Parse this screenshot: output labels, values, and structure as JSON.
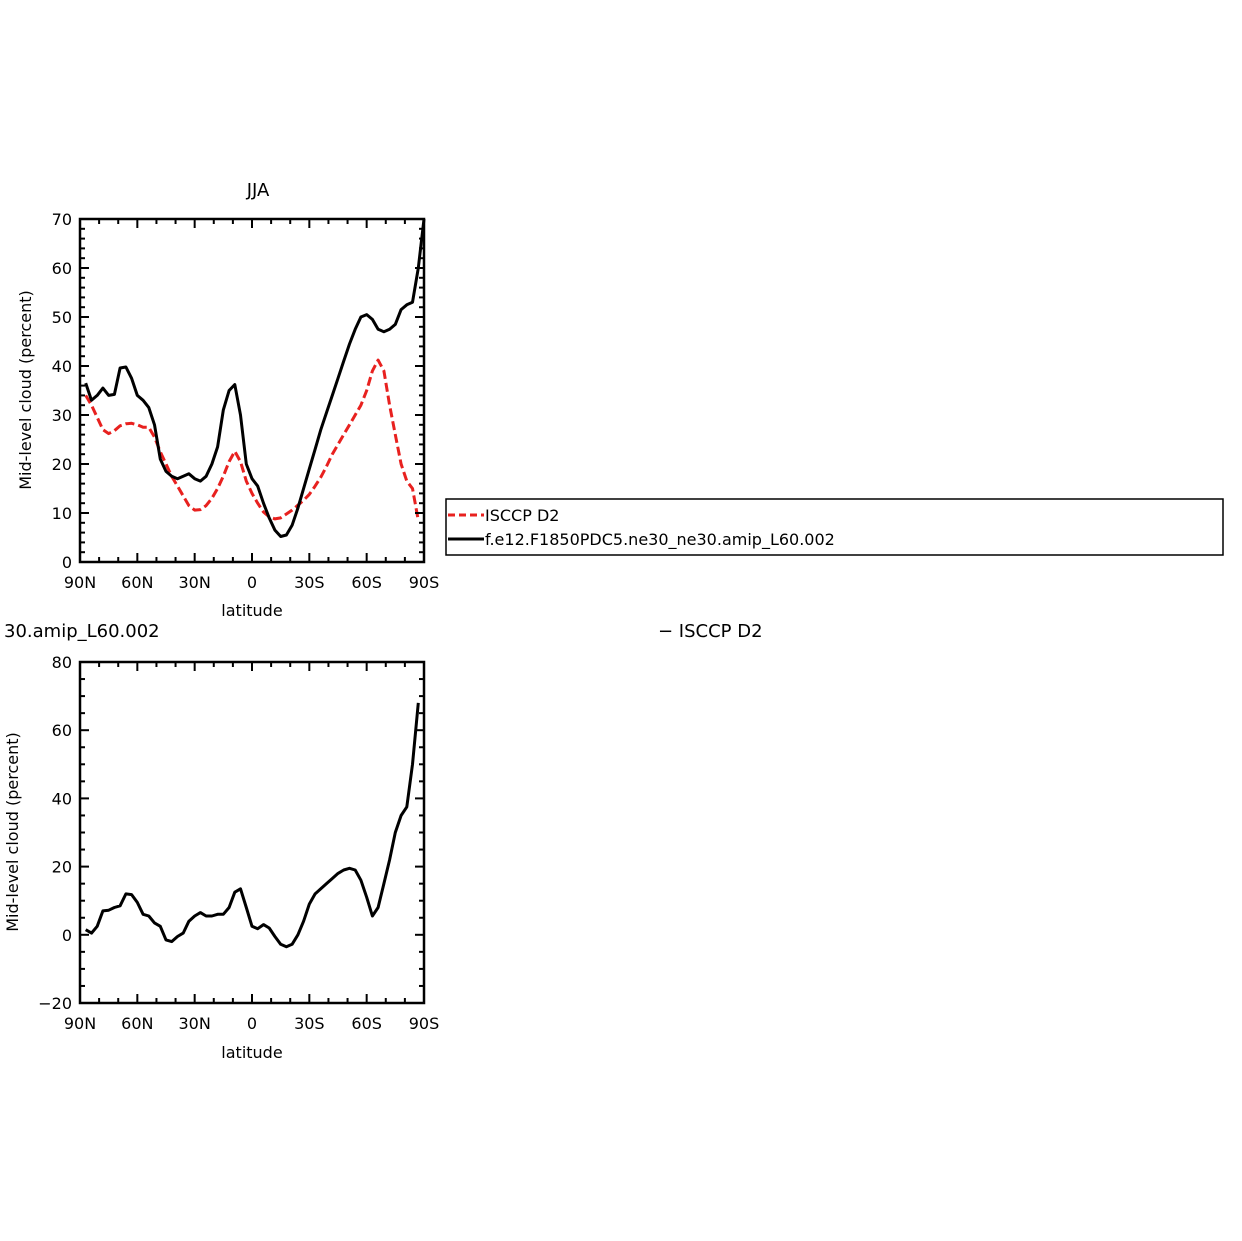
{
  "chart_data": [
    {
      "type": "line",
      "title": "JJA",
      "xlabel": "latitude",
      "ylabel": "Mid-level cloud (percent)",
      "xlim": [
        -90,
        90
      ],
      "ylim": [
        0,
        70
      ],
      "x_tick_values": [
        -90,
        -60,
        -30,
        0,
        30,
        60,
        90
      ],
      "x_tick_labels": [
        "90N",
        "60N",
        "30N",
        "0",
        "30S",
        "60S",
        "90S"
      ],
      "y_tick_values": [
        0,
        10,
        20,
        30,
        40,
        50,
        60,
        70
      ],
      "y_tick_labels": [
        "0",
        "10",
        "20",
        "30",
        "40",
        "50",
        "60",
        "70"
      ],
      "grid": false,
      "legend_position": "right",
      "series": [
        {
          "name": "ISCCP D2",
          "color": "#e8211f",
          "dash": true,
          "x": [
            -87,
            -84,
            -81,
            -78,
            -75,
            -72,
            -69,
            -66,
            -63,
            -60,
            -57,
            -54,
            -51,
            -48,
            -45,
            -42,
            -39,
            -36,
            -33,
            -30,
            -27,
            -24,
            -21,
            -18,
            -15,
            -12,
            -9,
            -6,
            -3,
            0,
            3,
            6,
            9,
            12,
            15,
            18,
            21,
            24,
            27,
            30,
            33,
            36,
            39,
            42,
            45,
            48,
            51,
            54,
            57,
            60,
            63,
            66,
            69,
            72,
            75,
            78,
            81,
            84,
            87
          ],
          "y": [
            34,
            32,
            29.5,
            27,
            26.2,
            26.8,
            27.8,
            28.2,
            28.3,
            28,
            27.5,
            27.5,
            25.5,
            22.5,
            20,
            17.5,
            15.5,
            13.5,
            11.5,
            10.6,
            10.7,
            11.5,
            13,
            15,
            17.5,
            20.5,
            22.6,
            20.5,
            16.5,
            14,
            12,
            10.2,
            9.2,
            8.8,
            9,
            9.8,
            10.6,
            11.6,
            12.6,
            13.8,
            15.5,
            17.3,
            19.5,
            22,
            24,
            26,
            28,
            30,
            32,
            35,
            39,
            41.2,
            39,
            32,
            26,
            20,
            16.5,
            15,
            8.5
          ]
        },
        {
          "name": "f.e12.F1850PDC5.ne30_ne30.amip_L60.002",
          "color": "#000000",
          "dash": false,
          "x": [
            -87,
            -84,
            -81,
            -78,
            -75,
            -72,
            -69,
            -66,
            -63,
            -60,
            -57,
            -54,
            -51,
            -48,
            -45,
            -42,
            -39,
            -36,
            -33,
            -30,
            -27,
            -24,
            -21,
            -18,
            -15,
            -12,
            -9,
            -6,
            -3,
            0,
            3,
            6,
            9,
            12,
            15,
            18,
            21,
            24,
            27,
            30,
            33,
            36,
            39,
            42,
            45,
            48,
            51,
            54,
            57,
            60,
            63,
            66,
            69,
            72,
            75,
            78,
            81,
            84,
            87,
            90
          ],
          "y": [
            36.5,
            33,
            34,
            35.5,
            34,
            34.2,
            39.6,
            39.8,
            37.5,
            34,
            33,
            31.5,
            28,
            21,
            18.5,
            17.5,
            17,
            17.5,
            18,
            17,
            16.5,
            17.5,
            20,
            23.5,
            31,
            35,
            36.2,
            30,
            20,
            17,
            15.5,
            12,
            9,
            6.5,
            5.2,
            5.5,
            7.5,
            11,
            15,
            19,
            23,
            27,
            30.5,
            34,
            37.5,
            41,
            44.5,
            47.5,
            50,
            50.5,
            49.5,
            47.5,
            47,
            47.5,
            48.5,
            51.5,
            52.5,
            53,
            60,
            70
          ]
        }
      ]
    },
    {
      "type": "line",
      "title": "30.amip_L60.002          − ISCCP D2",
      "title_left": "30.amip_L60.002",
      "title_right": "− ISCCP D2",
      "xlabel": "latitude",
      "ylabel": "Mid-level cloud (percent)",
      "xlim": [
        -90,
        90
      ],
      "ylim": [
        -20,
        80
      ],
      "x_tick_values": [
        -90,
        -60,
        -30,
        0,
        30,
        60,
        90
      ],
      "x_tick_labels": [
        "90N",
        "60N",
        "30N",
        "0",
        "30S",
        "60S",
        "90S"
      ],
      "y_tick_values": [
        -20,
        0,
        20,
        40,
        60,
        80
      ],
      "y_tick_labels": [
        "−20",
        "0",
        "20",
        "40",
        "60",
        "80"
      ],
      "grid": false,
      "series": [
        {
          "color": "#000000",
          "dash": false,
          "x": [
            -87,
            -84,
            -81,
            -78,
            -75,
            -72,
            -69,
            -66,
            -63,
            -60,
            -57,
            -54,
            -51,
            -48,
            -45,
            -42,
            -39,
            -36,
            -33,
            -30,
            -27,
            -24,
            -21,
            -18,
            -15,
            -12,
            -9,
            -6,
            -3,
            0,
            3,
            6,
            9,
            12,
            15,
            18,
            21,
            24,
            27,
            30,
            33,
            36,
            39,
            42,
            45,
            48,
            51,
            54,
            57,
            60,
            63,
            66,
            69,
            72,
            75,
            78,
            81,
            84,
            87
          ],
          "y": [
            1.5,
            0.5,
            2.5,
            7,
            7.2,
            8,
            8.5,
            12,
            11.8,
            9.5,
            6,
            5.5,
            3.5,
            2.5,
            -1.5,
            -2,
            -0.5,
            0.5,
            4,
            5.5,
            6.5,
            5.5,
            5.5,
            6,
            6,
            8,
            12.5,
            13.5,
            8,
            2.5,
            1.8,
            3,
            2,
            -0.5,
            -2.8,
            -3.5,
            -2.8,
            0,
            4,
            9,
            12,
            13.5,
            15,
            16.5,
            18,
            19,
            19.5,
            19,
            16,
            11,
            5.5,
            8,
            15,
            22,
            30,
            35,
            37.5,
            50,
            68
          ]
        }
      ]
    }
  ],
  "legend": {
    "items": [
      "ISCCP D2",
      "f.e12.F1850PDC5.ne30_ne30.amip_L60.002"
    ]
  }
}
